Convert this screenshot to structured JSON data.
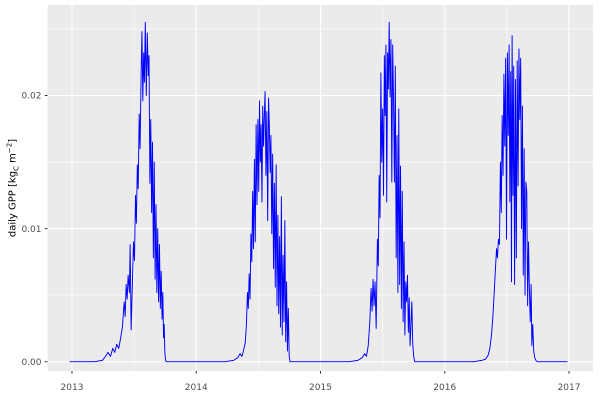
{
  "chart_data": {
    "type": "line",
    "title": "",
    "xlabel": "",
    "ylabel": "daily GPP [kg_C m^-2]",
    "ylabel_parts": {
      "text": "daily GPP [kg",
      "sub": "C",
      "mid": " m",
      "sup": "−2",
      "close": "]"
    },
    "legend": "none",
    "grid": true,
    "xlim": [
      2012.803,
      2017.193
    ],
    "ylim": [
      -0.0007,
      0.0268
    ],
    "x_ticks": {
      "values": [
        2013,
        2014,
        2015,
        2016,
        2017
      ],
      "labels": [
        "2013",
        "2014",
        "2015",
        "2016",
        "2017"
      ]
    },
    "y_ticks": {
      "values": [
        0,
        0.01,
        0.02
      ],
      "labels": [
        "0.00",
        "0.01",
        "0.02"
      ]
    },
    "x_minor_ticks": [
      2013.5,
      2014.5,
      2015.5,
      2016.5
    ],
    "y_minor_ticks": [
      0.005,
      0.015,
      0.025
    ],
    "style": {
      "page_bg": "#FFFFFF",
      "panel_bg": "#EBEBEB",
      "grid_major": "#FFFFFF",
      "grid_minor": "#FFFFFF",
      "line_color": "#0000FF",
      "tick_label_color": "#4D4D4D",
      "tick_mark_color": "#333333",
      "axis_label_color": "#000000"
    },
    "series": [
      {
        "name": "daily GPP",
        "color": "#0000FF",
        "points": [
          [
            2012.981,
            0
          ],
          [
            2013.08,
            0
          ],
          [
            2013.18,
            0
          ],
          [
            2013.245,
            0.0001
          ],
          [
            2013.27,
            0.0004
          ],
          [
            2013.29,
            0.0007
          ],
          [
            2013.31,
            0.0004
          ],
          [
            2013.328,
            0.001
          ],
          [
            2013.344,
            0.0007
          ],
          [
            2013.36,
            0.0013
          ],
          [
            2013.376,
            0.001
          ],
          [
            2013.392,
            0.0018
          ],
          [
            2013.406,
            0.0026
          ],
          [
            2013.42,
            0.0045
          ],
          [
            2013.428,
            0.0034
          ],
          [
            2013.436,
            0.0058
          ],
          [
            2013.444,
            0.0047
          ],
          [
            2013.452,
            0.0065
          ],
          [
            2013.462,
            0.0052
          ],
          [
            2013.468,
            0.0088
          ],
          [
            2013.476,
            0.0024
          ],
          [
            2013.487,
            0.0062
          ],
          [
            2013.495,
            0.009
          ],
          [
            2013.503,
            0.0076
          ],
          [
            2013.511,
            0.0125
          ],
          [
            2013.518,
            0.0104
          ],
          [
            2013.526,
            0.0148
          ],
          [
            2013.533,
            0.013
          ],
          [
            2013.541,
            0.0186
          ],
          [
            2013.548,
            0.016
          ],
          [
            2013.556,
            0.0214
          ],
          [
            2013.563,
            0.0248
          ],
          [
            2013.57,
            0.0196
          ],
          [
            2013.577,
            0.0232
          ],
          [
            2013.583,
            0.021
          ],
          [
            2013.59,
            0.0255
          ],
          [
            2013.598,
            0.02
          ],
          [
            2013.606,
            0.0247
          ],
          [
            2013.614,
            0.0215
          ],
          [
            2013.62,
            0.023
          ],
          [
            2013.627,
            0.0134
          ],
          [
            2013.634,
            0.0182
          ],
          [
            2013.641,
            0.0112
          ],
          [
            2013.648,
            0.0165
          ],
          [
            2013.655,
            0.0078
          ],
          [
            2013.662,
            0.015
          ],
          [
            2013.669,
            0.0062
          ],
          [
            2013.676,
            0.0118
          ],
          [
            2013.683,
            0.0052
          ],
          [
            2013.69,
            0.01
          ],
          [
            2013.697,
            0.0045
          ],
          [
            2013.704,
            0.0088
          ],
          [
            2013.711,
            0.004
          ],
          [
            2013.718,
            0.0068
          ],
          [
            2013.725,
            0.0032
          ],
          [
            2013.731,
            0.0052
          ],
          [
            2013.737,
            0.0018
          ],
          [
            2013.742,
            0.0028
          ],
          [
            2013.747,
            0.0008
          ],
          [
            2013.753,
            0.0001
          ],
          [
            2013.76,
            0
          ],
          [
            2013.87,
            0
          ],
          [
            2013.99,
            0
          ],
          [
            2014.11,
            0
          ],
          [
            2014.23,
            0
          ],
          [
            2014.3,
            0.0001
          ],
          [
            2014.335,
            0.0003
          ],
          [
            2014.352,
            0.0006
          ],
          [
            2014.368,
            0.0004
          ],
          [
            2014.382,
            0.0009
          ],
          [
            2014.394,
            0.0014
          ],
          [
            2014.404,
            0.0028
          ],
          [
            2014.412,
            0.0052
          ],
          [
            2014.419,
            0.004
          ],
          [
            2014.426,
            0.0066
          ],
          [
            2014.433,
            0.0047
          ],
          [
            2014.44,
            0.0096
          ],
          [
            2014.447,
            0.0075
          ],
          [
            2014.454,
            0.0128
          ],
          [
            2014.461,
            0.0085
          ],
          [
            2014.468,
            0.0152
          ],
          [
            2014.475,
            0.009
          ],
          [
            2014.482,
            0.0178
          ],
          [
            2014.489,
            0.0118
          ],
          [
            2014.496,
            0.0182
          ],
          [
            2014.503,
            0.0128
          ],
          [
            2014.509,
            0.0196
          ],
          [
            2014.516,
            0.015
          ],
          [
            2014.522,
            0.0178
          ],
          [
            2014.529,
            0.012
          ],
          [
            2014.535,
            0.0192
          ],
          [
            2014.542,
            0.0162
          ],
          [
            2014.548,
            0.0185
          ],
          [
            2014.554,
            0.0203
          ],
          [
            2014.561,
            0.014
          ],
          [
            2014.568,
            0.0188
          ],
          [
            2014.575,
            0.0106
          ],
          [
            2014.582,
            0.0198
          ],
          [
            2014.588,
            0.0178
          ],
          [
            2014.595,
            0.0142
          ],
          [
            2014.601,
            0.017
          ],
          [
            2014.608,
            0.0096
          ],
          [
            2014.615,
            0.0156
          ],
          [
            2014.622,
            0.007
          ],
          [
            2014.629,
            0.0134
          ],
          [
            2014.636,
            0.0056
          ],
          [
            2014.643,
            0.0148
          ],
          [
            2014.65,
            0.0042
          ],
          [
            2014.657,
            0.011
          ],
          [
            2014.664,
            0.0036
          ],
          [
            2014.671,
            0.0094
          ],
          [
            2014.678,
            0.0026
          ],
          [
            2014.685,
            0.0124
          ],
          [
            2014.692,
            0.002
          ],
          [
            2014.699,
            0.008
          ],
          [
            2014.706,
            0.003
          ],
          [
            2014.713,
            0.0106
          ],
          [
            2014.72,
            0.0015
          ],
          [
            2014.727,
            0.006
          ],
          [
            2014.734,
            0.0008
          ],
          [
            2014.741,
            0.004
          ],
          [
            2014.748,
            0.0004
          ],
          [
            2014.755,
            0
          ],
          [
            2014.87,
            0
          ],
          [
            2014.99,
            0
          ],
          [
            2015.11,
            0
          ],
          [
            2015.23,
            0
          ],
          [
            2015.3,
            0.0001
          ],
          [
            2015.335,
            0.0003
          ],
          [
            2015.355,
            0.0006
          ],
          [
            2015.37,
            0.0004
          ],
          [
            2015.384,
            0.0012
          ],
          [
            2015.397,
            0.003
          ],
          [
            2015.407,
            0.0055
          ],
          [
            2015.415,
            0.0038
          ],
          [
            2015.423,
            0.0062
          ],
          [
            2015.431,
            0.0042
          ],
          [
            2015.439,
            0.006
          ],
          [
            2015.448,
            0.0025
          ],
          [
            2015.458,
            0.0092
          ],
          [
            2015.465,
            0.0072
          ],
          [
            2015.472,
            0.014
          ],
          [
            2015.479,
            0.0108
          ],
          [
            2015.486,
            0.0217
          ],
          [
            2015.493,
            0.015
          ],
          [
            2015.5,
            0.019
          ],
          [
            2015.507,
            0.0125
          ],
          [
            2015.514,
            0.023
          ],
          [
            2015.52,
            0.0185
          ],
          [
            2015.527,
            0.0238
          ],
          [
            2015.533,
            0.012
          ],
          [
            2015.54,
            0.0232
          ],
          [
            2015.546,
            0.0205
          ],
          [
            2015.553,
            0.0255
          ],
          [
            2015.56,
            0.0199
          ],
          [
            2015.567,
            0.0242
          ],
          [
            2015.574,
            0.0135
          ],
          [
            2015.581,
            0.0238
          ],
          [
            2015.588,
            0.0195
          ],
          [
            2015.595,
            0.0135
          ],
          [
            2015.602,
            0.0222
          ],
          [
            2015.609,
            0.0078
          ],
          [
            2015.616,
            0.017
          ],
          [
            2015.623,
            0.0052
          ],
          [
            2015.63,
            0.019
          ],
          [
            2015.637,
            0.0058
          ],
          [
            2015.644,
            0.0147
          ],
          [
            2015.651,
            0.004
          ],
          [
            2015.658,
            0.0128
          ],
          [
            2015.665,
            0.003
          ],
          [
            2015.672,
            0.009
          ],
          [
            2015.679,
            0.002
          ],
          [
            2015.686,
            0.006
          ],
          [
            2015.693,
            0.0045
          ],
          [
            2015.7,
            0.0065
          ],
          [
            2015.707,
            0.0022
          ],
          [
            2015.714,
            0.0048
          ],
          [
            2015.721,
            0.0012
          ],
          [
            2015.728,
            0.0028
          ],
          [
            2015.735,
            0.0045
          ],
          [
            2015.742,
            0.0014
          ],
          [
            2015.75,
            0.0004
          ],
          [
            2015.758,
            0
          ],
          [
            2015.87,
            0
          ],
          [
            2015.99,
            0
          ],
          [
            2016.11,
            0
          ],
          [
            2016.23,
            0
          ],
          [
            2016.3,
            0.0001
          ],
          [
            2016.33,
            0.0002
          ],
          [
            2016.35,
            0.0005
          ],
          [
            2016.363,
            0.001
          ],
          [
            2016.376,
            0.002
          ],
          [
            2016.388,
            0.0035
          ],
          [
            2016.398,
            0.0052
          ],
          [
            2016.408,
            0.007
          ],
          [
            2016.417,
            0.0085
          ],
          [
            2016.424,
            0.0078
          ],
          [
            2016.432,
            0.0092
          ],
          [
            2016.44,
            0.0088
          ],
          [
            2016.448,
            0.015
          ],
          [
            2016.455,
            0.0112
          ],
          [
            2016.462,
            0.0185
          ],
          [
            2016.469,
            0.014
          ],
          [
            2016.476,
            0.0216
          ],
          [
            2016.483,
            0.0162
          ],
          [
            2016.49,
            0.0228
          ],
          [
            2016.497,
            0.0092
          ],
          [
            2016.504,
            0.0232
          ],
          [
            2016.511,
            0.017
          ],
          [
            2016.518,
            0.0238
          ],
          [
            2016.524,
            0.012
          ],
          [
            2016.531,
            0.0218
          ],
          [
            2016.537,
            0.006
          ],
          [
            2016.542,
            0.0245
          ],
          [
            2016.549,
            0.0125
          ],
          [
            2016.555,
            0.0222
          ],
          [
            2016.562,
            0.0058
          ],
          [
            2016.569,
            0.0212
          ],
          [
            2016.576,
            0.0078
          ],
          [
            2016.583,
            0.0226
          ],
          [
            2016.59,
            0.0132
          ],
          [
            2016.597,
            0.0235
          ],
          [
            2016.604,
            0.0182
          ],
          [
            2016.611,
            0.0228
          ],
          [
            2016.618,
            0.01
          ],
          [
            2016.625,
            0.0192
          ],
          [
            2016.632,
            0.0065
          ],
          [
            2016.639,
            0.016
          ],
          [
            2016.646,
            0.005
          ],
          [
            2016.653,
            0.0135
          ],
          [
            2016.66,
            0.0128
          ],
          [
            2016.667,
            0.0042
          ],
          [
            2016.674,
            0.009
          ],
          [
            2016.681,
            0.0055
          ],
          [
            2016.688,
            0.003
          ],
          [
            2016.695,
            0.0058
          ],
          [
            2016.701,
            0.0012
          ],
          [
            2016.708,
            0.0028
          ],
          [
            2016.716,
            0.0008
          ],
          [
            2016.724,
            0.0003
          ],
          [
            2016.733,
            0.0001
          ],
          [
            2016.745,
            0
          ],
          [
            2016.82,
            0
          ],
          [
            2016.9,
            0
          ],
          [
            2016.988,
            0
          ]
        ]
      }
    ]
  }
}
